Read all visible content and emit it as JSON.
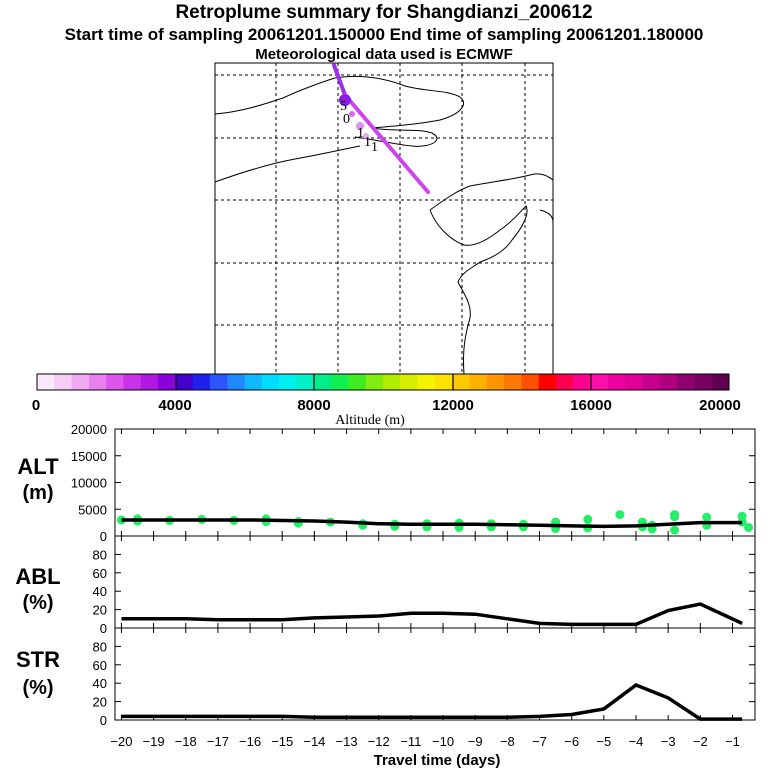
{
  "header": {
    "title": "Retroplume summary for Shangdianzi_200612",
    "subtitle": "Start time of sampling 20061201.150000     End time of sampling 20061201.180000",
    "met_line": "Meteorological data used is ECMWF"
  },
  "map": {
    "plume_color": "#cc44ee",
    "labels": [
      "5",
      "0",
      "1",
      "1",
      "1"
    ]
  },
  "colorbar": {
    "ticks": [
      "0",
      "4000",
      "8000",
      "12000",
      "16000",
      "20000"
    ],
    "label": "Altitude (m)",
    "colors": [
      "#fbe8fb",
      "#f6cdf6",
      "#f0aaf2",
      "#e880ee",
      "#dc55ec",
      "#c833e8",
      "#b018e0",
      "#8c00dc",
      "#4400cc",
      "#2020ee",
      "#2a55ff",
      "#1f88ff",
      "#10b8ff",
      "#00dcff",
      "#00f0f0",
      "#00f0c8",
      "#00ee88",
      "#10ee50",
      "#40ee20",
      "#80ee10",
      "#b0ee00",
      "#d8ee00",
      "#f4f400",
      "#ffe000",
      "#ffc800",
      "#ffb000",
      "#ff9400",
      "#ff7800",
      "#ff5000",
      "#ff0000",
      "#ff0050",
      "#ff0090",
      "#ff10a8",
      "#f000a0",
      "#e00098",
      "#c80090",
      "#b00080",
      "#900070",
      "#780060",
      "#600050"
    ]
  },
  "colors": {
    "dots": "#22ee66",
    "line": "#000000"
  },
  "chart_data": [
    {
      "type": "scatter",
      "name": "ALT",
      "ylabel": "ALT\n(m)",
      "ylim": [
        0,
        20000
      ],
      "yticks": [
        0,
        5000,
        10000,
        15000,
        20000
      ],
      "median": {
        "x": [
          -20,
          -19,
          -18,
          -17,
          -16,
          -15,
          -14,
          -13,
          -12,
          -11,
          -10,
          -9,
          -8,
          -7,
          -6,
          -5,
          -4,
          -3,
          -2,
          -0.7
        ],
        "y": [
          3000,
          3000,
          3000,
          3000,
          3000,
          2900,
          2800,
          2600,
          2300,
          2200,
          2200,
          2200,
          2100,
          2000,
          1900,
          1800,
          1900,
          2200,
          2500,
          2500
        ]
      },
      "points": {
        "x": [
          -20,
          -19.5,
          -19.5,
          -18.5,
          -17.5,
          -16.5,
          -15.5,
          -15.5,
          -14.5,
          -14.5,
          -13.5,
          -12.5,
          -12.5,
          -11.5,
          -11.5,
          -10.5,
          -10.5,
          -10.5,
          -9.5,
          -9.5,
          -9.5,
          -8.5,
          -8.5,
          -7.5,
          -7.5,
          -6.5,
          -6.5,
          -5.5,
          -5.5,
          -4.5,
          -3.8,
          -3.8,
          -3.5,
          -3.5,
          -2.8,
          -2.8,
          -2.8,
          -1.8,
          -1.8,
          -0.7,
          -0.7,
          -0.5
        ],
        "y": [
          3000,
          2800,
          3200,
          2900,
          3100,
          2900,
          3200,
          2700,
          2700,
          2400,
          2600,
          2300,
          2000,
          2200,
          1800,
          2300,
          2000,
          1700,
          2400,
          2100,
          1600,
          2300,
          1700,
          2200,
          1700,
          2600,
          1400,
          3100,
          1500,
          4000,
          2600,
          1700,
          2000,
          1300,
          3600,
          4000,
          1100,
          3500,
          2000,
          3700,
          2600,
          1600
        ]
      }
    },
    {
      "type": "line",
      "name": "ABL",
      "ylabel": "ABL\n(%)",
      "ylim": [
        0,
        100
      ],
      "yticks": [
        0,
        20,
        40,
        60,
        80
      ],
      "x": [
        -20,
        -19,
        -18,
        -17,
        -16,
        -15,
        -14,
        -13,
        -12,
        -11,
        -10,
        -9,
        -8,
        -7,
        -6,
        -5,
        -4,
        -3,
        -2,
        -0.7
      ],
      "y": [
        10,
        10,
        10,
        9,
        9,
        9,
        11,
        12,
        13,
        16,
        16,
        15,
        10,
        5,
        4,
        4,
        4,
        19,
        26,
        5
      ]
    },
    {
      "type": "line",
      "name": "STR",
      "ylabel": "STR\n(%)",
      "ylim": [
        0,
        100
      ],
      "yticks": [
        0,
        20,
        40,
        60,
        80
      ],
      "x": [
        -20,
        -19,
        -18,
        -17,
        -16,
        -15,
        -14,
        -13,
        -12,
        -11,
        -10,
        -9,
        -8,
        -7,
        -6,
        -5,
        -4,
        -3,
        -2,
        -0.7
      ],
      "y": [
        4,
        4,
        4,
        4,
        4,
        4,
        3,
        3,
        3,
        3,
        3,
        3,
        3,
        4,
        6,
        12,
        38,
        24,
        1,
        1
      ]
    }
  ],
  "xaxis": {
    "ticks": [
      -20,
      -19,
      -18,
      -17,
      -16,
      -15,
      -14,
      -13,
      -12,
      -11,
      -10,
      -9,
      -8,
      -7,
      -6,
      -5,
      -4,
      -3,
      -2,
      -1
    ],
    "tick_labels": [
      "−20",
      "−19",
      "−18",
      "−17",
      "−16",
      "−15",
      "−14",
      "−13",
      "−12",
      "−11",
      "−10",
      "−9",
      "−8",
      "−7",
      "−6",
      "−5",
      "−4",
      "−3",
      "−2",
      "−1"
    ],
    "label": "Travel time (days)",
    "xlim": [
      -20.2,
      -0.3
    ]
  }
}
